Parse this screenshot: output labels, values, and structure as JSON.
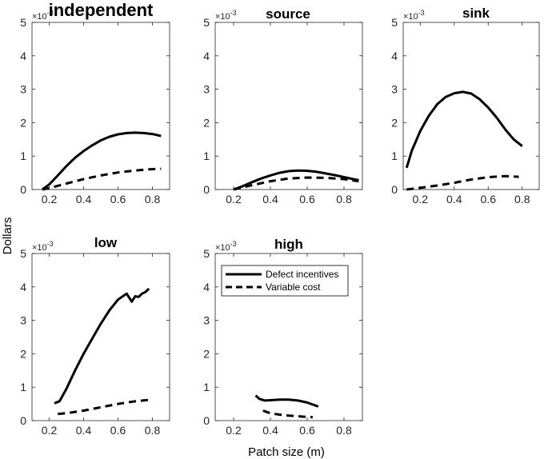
{
  "chart_data": [
    {
      "type": "line",
      "title": "independent",
      "xlim": [
        0.1,
        0.9
      ],
      "ylim": [
        0,
        5
      ],
      "xticks": [
        0.2,
        0.4,
        0.6,
        0.8
      ],
      "yticks": [
        0,
        1,
        2,
        3,
        4,
        5
      ],
      "y_scale_exponent": "×10^-3",
      "series": [
        {
          "name": "Defect incentives",
          "style": "solid",
          "x": [
            0.16,
            0.2,
            0.25,
            0.3,
            0.35,
            0.4,
            0.45,
            0.5,
            0.55,
            0.6,
            0.65,
            0.7,
            0.75,
            0.8,
            0.85
          ],
          "y": [
            0.0,
            0.15,
            0.42,
            0.7,
            0.95,
            1.15,
            1.32,
            1.47,
            1.58,
            1.65,
            1.69,
            1.7,
            1.69,
            1.66,
            1.6
          ]
        },
        {
          "name": "Variable cost",
          "style": "dashed",
          "x": [
            0.16,
            0.2,
            0.3,
            0.4,
            0.5,
            0.6,
            0.7,
            0.8,
            0.85
          ],
          "y": [
            0.0,
            0.04,
            0.18,
            0.31,
            0.42,
            0.51,
            0.57,
            0.61,
            0.62
          ]
        }
      ]
    },
    {
      "type": "line",
      "title": "source",
      "xlim": [
        0.1,
        0.9
      ],
      "ylim": [
        0,
        5
      ],
      "xticks": [
        0.2,
        0.4,
        0.6,
        0.8
      ],
      "yticks": [
        0,
        1,
        2,
        3,
        4,
        5
      ],
      "y_scale_exponent": "×10^-3",
      "series": [
        {
          "name": "Defect incentives",
          "style": "solid",
          "x": [
            0.2,
            0.25,
            0.3,
            0.35,
            0.4,
            0.45,
            0.5,
            0.55,
            0.6,
            0.65,
            0.7,
            0.75,
            0.8,
            0.85,
            0.88
          ],
          "y": [
            0.0,
            0.1,
            0.22,
            0.33,
            0.42,
            0.5,
            0.55,
            0.57,
            0.56,
            0.53,
            0.48,
            0.43,
            0.37,
            0.31,
            0.28
          ]
        },
        {
          "name": "Variable cost",
          "style": "dashed",
          "x": [
            0.2,
            0.3,
            0.4,
            0.5,
            0.6,
            0.7,
            0.8,
            0.88
          ],
          "y": [
            0.0,
            0.13,
            0.25,
            0.33,
            0.36,
            0.35,
            0.31,
            0.25
          ]
        }
      ]
    },
    {
      "type": "line",
      "title": "sink",
      "xlim": [
        0.1,
        0.9
      ],
      "ylim": [
        0,
        5
      ],
      "xticks": [
        0.2,
        0.4,
        0.6,
        0.8
      ],
      "yticks": [
        0,
        1,
        2,
        3,
        4,
        5
      ],
      "y_scale_exponent": "×10^-3",
      "series": [
        {
          "name": "Defect incentives",
          "style": "solid",
          "x": [
            0.12,
            0.15,
            0.2,
            0.25,
            0.3,
            0.35,
            0.4,
            0.45,
            0.5,
            0.55,
            0.6,
            0.65,
            0.7,
            0.75,
            0.8
          ],
          "y": [
            0.65,
            1.15,
            1.75,
            2.2,
            2.55,
            2.77,
            2.88,
            2.92,
            2.87,
            2.7,
            2.45,
            2.15,
            1.8,
            1.5,
            1.3
          ]
        },
        {
          "name": "Variable cost",
          "style": "dashed",
          "x": [
            0.12,
            0.2,
            0.3,
            0.4,
            0.5,
            0.6,
            0.7,
            0.78
          ],
          "y": [
            0.0,
            0.05,
            0.12,
            0.2,
            0.3,
            0.37,
            0.4,
            0.38
          ]
        }
      ]
    },
    {
      "type": "line",
      "title": "low",
      "xlim": [
        0.1,
        0.9
      ],
      "ylim": [
        0,
        5
      ],
      "xticks": [
        0.2,
        0.4,
        0.6,
        0.8
      ],
      "yticks": [
        0,
        1,
        2,
        3,
        4,
        5
      ],
      "y_scale_exponent": "×10^-3",
      "series": [
        {
          "name": "Defect incentives",
          "style": "solid",
          "x": [
            0.23,
            0.26,
            0.3,
            0.35,
            0.4,
            0.45,
            0.5,
            0.55,
            0.6,
            0.65,
            0.68,
            0.7,
            0.72,
            0.74,
            0.76,
            0.78
          ],
          "y": [
            0.52,
            0.58,
            0.95,
            1.5,
            2.0,
            2.45,
            2.9,
            3.3,
            3.62,
            3.8,
            3.56,
            3.72,
            3.7,
            3.8,
            3.85,
            3.95
          ]
        },
        {
          "name": "Variable cost",
          "style": "dashed",
          "x": [
            0.25,
            0.3,
            0.4,
            0.5,
            0.6,
            0.7,
            0.78
          ],
          "y": [
            0.2,
            0.22,
            0.3,
            0.4,
            0.5,
            0.58,
            0.62
          ]
        }
      ]
    },
    {
      "type": "line",
      "title": "high",
      "xlim": [
        0.1,
        0.9
      ],
      "ylim": [
        0,
        5
      ],
      "xticks": [
        0.2,
        0.4,
        0.6,
        0.8
      ],
      "yticks": [
        0,
        1,
        2,
        3,
        4,
        5
      ],
      "y_scale_exponent": "×10^-3",
      "legend": {
        "position": "top",
        "entries": [
          "Defect incentives",
          "Variable cost"
        ]
      },
      "series": [
        {
          "name": "Defect incentives",
          "style": "solid",
          "x": [
            0.32,
            0.34,
            0.37,
            0.4,
            0.45,
            0.5,
            0.55,
            0.6,
            0.63,
            0.66
          ],
          "y": [
            0.75,
            0.65,
            0.6,
            0.61,
            0.63,
            0.63,
            0.6,
            0.54,
            0.48,
            0.42
          ]
        },
        {
          "name": "Variable cost",
          "style": "dashed",
          "x": [
            0.36,
            0.4,
            0.45,
            0.5,
            0.55,
            0.6,
            0.63
          ],
          "y": [
            0.3,
            0.22,
            0.18,
            0.15,
            0.13,
            0.11,
            0.1
          ]
        }
      ]
    }
  ],
  "shared_labels": {
    "ylabel": "Dollars",
    "xlabel": "Patch size (m)",
    "exponent_base": "×10",
    "exponent_power": "-3"
  },
  "legend": {
    "entries": [
      "Defect incentives",
      "Variable cost"
    ]
  }
}
